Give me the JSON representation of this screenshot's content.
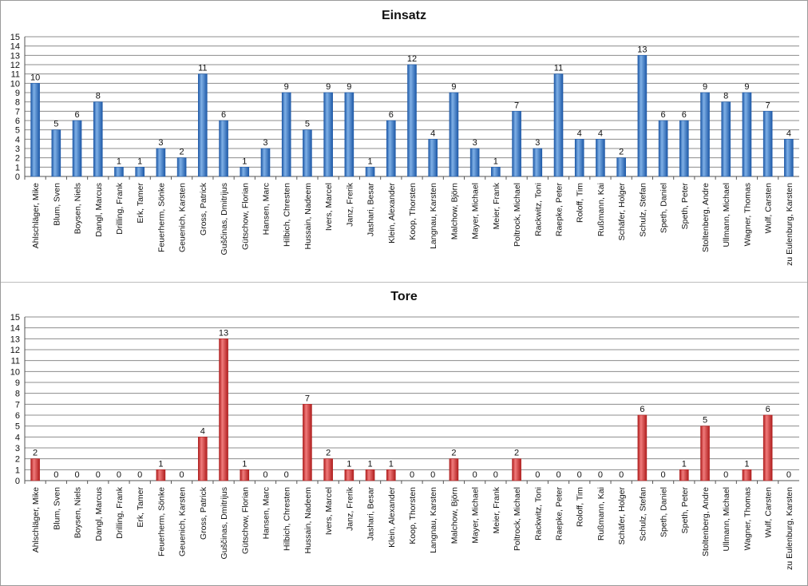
{
  "charts": [
    {
      "id": "einsatz",
      "type": "bar",
      "title": "Einsatz",
      "color_light": "#7fb0e6",
      "color_dark": "#1f5aa8",
      "ylim": [
        0,
        15
      ],
      "yticks": [
        0,
        1,
        2,
        3,
        4,
        5,
        6,
        7,
        8,
        9,
        10,
        11,
        12,
        13,
        14,
        15
      ],
      "grid": true,
      "categories": [
        "Ahlschläger, Mike",
        "Blum, Sven",
        "Boysen, Niels",
        "Dangl, Marcus",
        "Drilling, Frank",
        "Erk, Tamer",
        "Feuerherm, Sönke",
        "Geuenich, Karsten",
        "Gross, Patrick",
        "Guščinas, Dmitrijus",
        "Gütschow, Florian",
        "Hansen, Marc",
        "Hilbich, Chresten",
        "Hussain, Nadeem",
        "Ivers, Marcel",
        "Janz, Frerik",
        "Jashari, Besar",
        "Klein, Alexander",
        "Koop, Thorsten",
        "Langnau, Karsten",
        "Malchow, Björn",
        "Mayer, Michael",
        "Meier, Frank",
        "Poltrock, Michael",
        "Rackwitz, Toni",
        "Raepke, Peter",
        "Roloff, Tim",
        "Rußmann, Kai",
        "Schäfer, Holger",
        "Schulz, Stefan",
        "Speth, Daniel",
        "Speth, Peter",
        "Stoltenberg, Andre",
        "Ullmann, Michael",
        "Wagner, Thomas",
        "Wulf, Carsten",
        "zu Eulenburg, Karsten"
      ],
      "values": [
        10,
        5,
        6,
        8,
        1,
        1,
        3,
        2,
        11,
        6,
        1,
        3,
        9,
        5,
        9,
        9,
        1,
        6,
        12,
        4,
        9,
        3,
        1,
        7,
        3,
        11,
        4,
        4,
        2,
        13,
        6,
        6,
        9,
        8,
        9,
        7,
        4
      ]
    },
    {
      "id": "tore",
      "type": "bar",
      "title": "Tore",
      "color_light": "#f07b7b",
      "color_dark": "#b01e1e",
      "ylim": [
        0,
        15
      ],
      "yticks": [
        0,
        1,
        2,
        3,
        4,
        5,
        6,
        7,
        8,
        9,
        10,
        11,
        12,
        13,
        14,
        15
      ],
      "grid": true,
      "categories": [
        "Ahlschläger, Mike",
        "Blum, Sven",
        "Boysen, Niels",
        "Dangl, Marcus",
        "Drilling, Frank",
        "Erk, Tamer",
        "Feuerherm, Sönke",
        "Geuenich, Karsten",
        "Gross, Patrick",
        "Guščinas, Dmitrijus",
        "Gütschow, Florian",
        "Hansen, Marc",
        "Hilbich, Chresten",
        "Hussain, Nadeem",
        "Ivers, Marcel",
        "Janz, Frerik",
        "Jashari, Besar",
        "Klein, Alexander",
        "Koop, Thorsten",
        "Langnau, Karsten",
        "Malchow, Björn",
        "Mayer, Michael",
        "Meier, Frank",
        "Poltrock, Michael",
        "Rackwitz, Toni",
        "Raepke, Peter",
        "Roloff, Tim",
        "Rußmann, Kai",
        "Schäfer, Holger",
        "Schulz, Stefan",
        "Speth, Daniel",
        "Speth, Peter",
        "Stoltenberg, Andre",
        "Ullmann, Michael",
        "Wagner, Thomas",
        "Wulf, Carsten",
        "zu Eulenburg, Karsten"
      ],
      "values": [
        2,
        0,
        0,
        0,
        0,
        0,
        1,
        0,
        4,
        13,
        1,
        0,
        0,
        7,
        2,
        1,
        1,
        1,
        0,
        0,
        2,
        0,
        0,
        2,
        0,
        0,
        0,
        0,
        0,
        6,
        0,
        1,
        5,
        0,
        1,
        6,
        0
      ]
    }
  ]
}
